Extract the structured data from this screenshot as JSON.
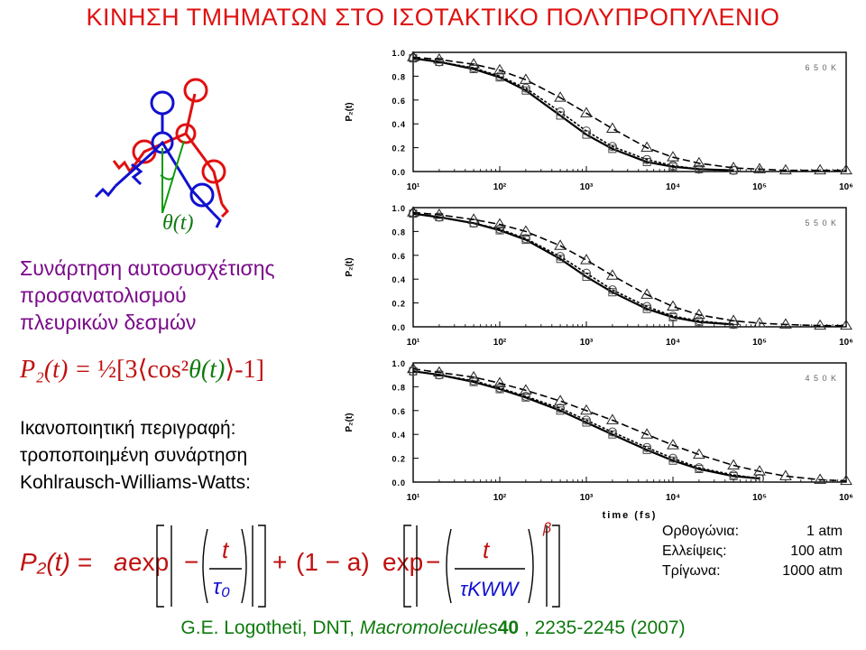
{
  "slide": {
    "title": "ΚΙΝΗΣΗ ΤΜΗΜΑΤΩΝ ΣΤΟ ΙΣΟΤΑΚΤΙΚΟ ΠΟΛΥΠΡΟΠΥΛΕΝΙΟ",
    "theta_label": "θ(t)",
    "description_lines": [
      "Συνάρτηση αυτοσυσχέτισης",
      "προσανατολισμού",
      "πλευρικών δεσμών"
    ],
    "eq1": {
      "lhs": "P₂(t) = ",
      "rhs1": "½[3⟨cos²",
      "theta": "θ(t)",
      "rhs2": "⟩-1]"
    },
    "kww_lines": [
      "Ικανοποιητική περιγραφή:",
      "τροποποιημένη συνάρτηση",
      "Kohlrausch-Williams-Watts:"
    ],
    "legend": [
      {
        "shape": "Ορθογώνια:",
        "pressure": "1 atm"
      },
      {
        "shape": "Ελλείψεις:",
        "pressure": "100 atm"
      },
      {
        "shape": "Τρίγωνα:",
        "pressure": "1000 atm"
      }
    ],
    "citation": {
      "authors": "G.E. Logotheti, DNT, ",
      "journal": "Macromolecules",
      "volume": "40",
      "pages": ", 2235-2245 (2007)"
    },
    "eq2": {
      "lhs": "P₂(t) = ",
      "a": "a",
      "exp": "exp",
      "minus": "−",
      "t": "t",
      "tau0": "τ₀",
      "plus": "+",
      "one_minus_a": "(1 − a)",
      "tau_kww": "τKWW",
      "beta": "β"
    },
    "colors": {
      "title": "#e01010",
      "purple": "#7a0a8a",
      "eq_red": "#c01010",
      "green": "#0f7a0f",
      "blue": "#1010d0",
      "molecule_red": "#e01010",
      "molecule_blue": "#1010d0"
    },
    "icons": [
      "molecule-diagram-icon"
    ]
  },
  "chart_data": [
    {
      "type": "line",
      "annotation": "6 5 0 K",
      "ylabel": "P₂(t)",
      "xlabel": "",
      "x_scale": "log",
      "xlim": [
        10,
        1000000
      ],
      "ylim": [
        0,
        1
      ],
      "x_ticks": [
        "10¹",
        "10²",
        "10³",
        "10⁴",
        "10⁵",
        "10⁶"
      ],
      "y_ticks": [
        "0.0",
        "0.2",
        "0.4",
        "0.6",
        "0.8",
        "1.0"
      ],
      "series": [
        {
          "marker": "square",
          "x": [
            10,
            20,
            50,
            100,
            200,
            500,
            1000,
            2000,
            5000,
            10000,
            20000,
            50000
          ],
          "values": [
            0.95,
            0.92,
            0.86,
            0.79,
            0.68,
            0.47,
            0.31,
            0.19,
            0.08,
            0.04,
            0.02,
            0.01
          ]
        },
        {
          "marker": "circle",
          "x": [
            10,
            20,
            50,
            100,
            200,
            500,
            1000,
            2000,
            5000,
            10000,
            20000,
            50000
          ],
          "values": [
            0.95,
            0.92,
            0.87,
            0.8,
            0.7,
            0.5,
            0.34,
            0.21,
            0.1,
            0.05,
            0.02,
            0.01
          ]
        },
        {
          "marker": "triangle",
          "x": [
            10,
            20,
            50,
            100,
            200,
            500,
            1000,
            2000,
            5000,
            10000,
            20000,
            50000,
            100000,
            200000,
            500000,
            1000000
          ],
          "values": [
            0.96,
            0.94,
            0.9,
            0.85,
            0.77,
            0.62,
            0.49,
            0.36,
            0.2,
            0.12,
            0.07,
            0.03,
            0.02,
            0.01,
            0.01,
            0.01
          ]
        }
      ]
    },
    {
      "type": "line",
      "annotation": "5 5 0 K",
      "ylabel": "P₂(t)",
      "xlabel": "",
      "x_scale": "log",
      "xlim": [
        10,
        1000000
      ],
      "ylim": [
        0,
        1
      ],
      "x_ticks": [
        "10¹",
        "10²",
        "10³",
        "10⁴",
        "10⁵",
        "10⁶"
      ],
      "y_ticks": [
        "0.0",
        "0.2",
        "0.4",
        "0.6",
        "0.8",
        "1.0"
      ],
      "series": [
        {
          "marker": "square",
          "x": [
            10,
            20,
            50,
            100,
            200,
            500,
            1000,
            2000,
            5000,
            10000,
            20000,
            50000
          ],
          "values": [
            0.95,
            0.92,
            0.87,
            0.81,
            0.73,
            0.57,
            0.42,
            0.29,
            0.15,
            0.08,
            0.04,
            0.02
          ]
        },
        {
          "marker": "circle",
          "x": [
            10,
            20,
            50,
            100,
            200,
            500,
            1000,
            2000,
            5000,
            10000,
            20000,
            50000
          ],
          "values": [
            0.95,
            0.92,
            0.87,
            0.82,
            0.74,
            0.59,
            0.45,
            0.31,
            0.17,
            0.09,
            0.05,
            0.02
          ]
        },
        {
          "marker": "triangle",
          "x": [
            10,
            20,
            50,
            100,
            200,
            500,
            1000,
            2000,
            5000,
            10000,
            20000,
            50000,
            100000,
            200000,
            500000,
            1000000
          ],
          "values": [
            0.96,
            0.94,
            0.9,
            0.86,
            0.8,
            0.68,
            0.56,
            0.43,
            0.27,
            0.17,
            0.1,
            0.05,
            0.03,
            0.02,
            0.01,
            0.01
          ]
        }
      ]
    },
    {
      "type": "line",
      "annotation": "4 5 0 K",
      "ylabel": "P₂(t)",
      "xlabel": "time (fs)",
      "x_scale": "log",
      "xlim": [
        10,
        1000000
      ],
      "ylim": [
        0,
        1
      ],
      "x_ticks": [
        "10¹",
        "10²",
        "10³",
        "10⁴",
        "10⁵",
        "10⁶"
      ],
      "y_ticks": [
        "0.0",
        "0.2",
        "0.4",
        "0.6",
        "0.8",
        "1.0"
      ],
      "series": [
        {
          "marker": "square",
          "x": [
            10,
            20,
            50,
            100,
            200,
            500,
            1000,
            2000,
            5000,
            10000,
            20000,
            50000,
            100000
          ],
          "values": [
            0.93,
            0.9,
            0.84,
            0.78,
            0.71,
            0.6,
            0.5,
            0.4,
            0.27,
            0.18,
            0.11,
            0.05,
            0.03
          ]
        },
        {
          "marker": "circle",
          "x": [
            10,
            20,
            50,
            100,
            200,
            500,
            1000,
            2000,
            5000,
            10000,
            20000,
            50000,
            100000
          ],
          "values": [
            0.93,
            0.9,
            0.85,
            0.79,
            0.72,
            0.62,
            0.52,
            0.42,
            0.29,
            0.2,
            0.12,
            0.06,
            0.03
          ]
        },
        {
          "marker": "triangle",
          "x": [
            10,
            20,
            50,
            100,
            200,
            500,
            1000,
            2000,
            5000,
            10000,
            20000,
            50000,
            100000,
            200000,
            500000,
            1000000
          ],
          "values": [
            0.95,
            0.92,
            0.88,
            0.83,
            0.77,
            0.68,
            0.6,
            0.52,
            0.4,
            0.31,
            0.23,
            0.14,
            0.09,
            0.05,
            0.02,
            0.01
          ]
        }
      ]
    }
  ]
}
